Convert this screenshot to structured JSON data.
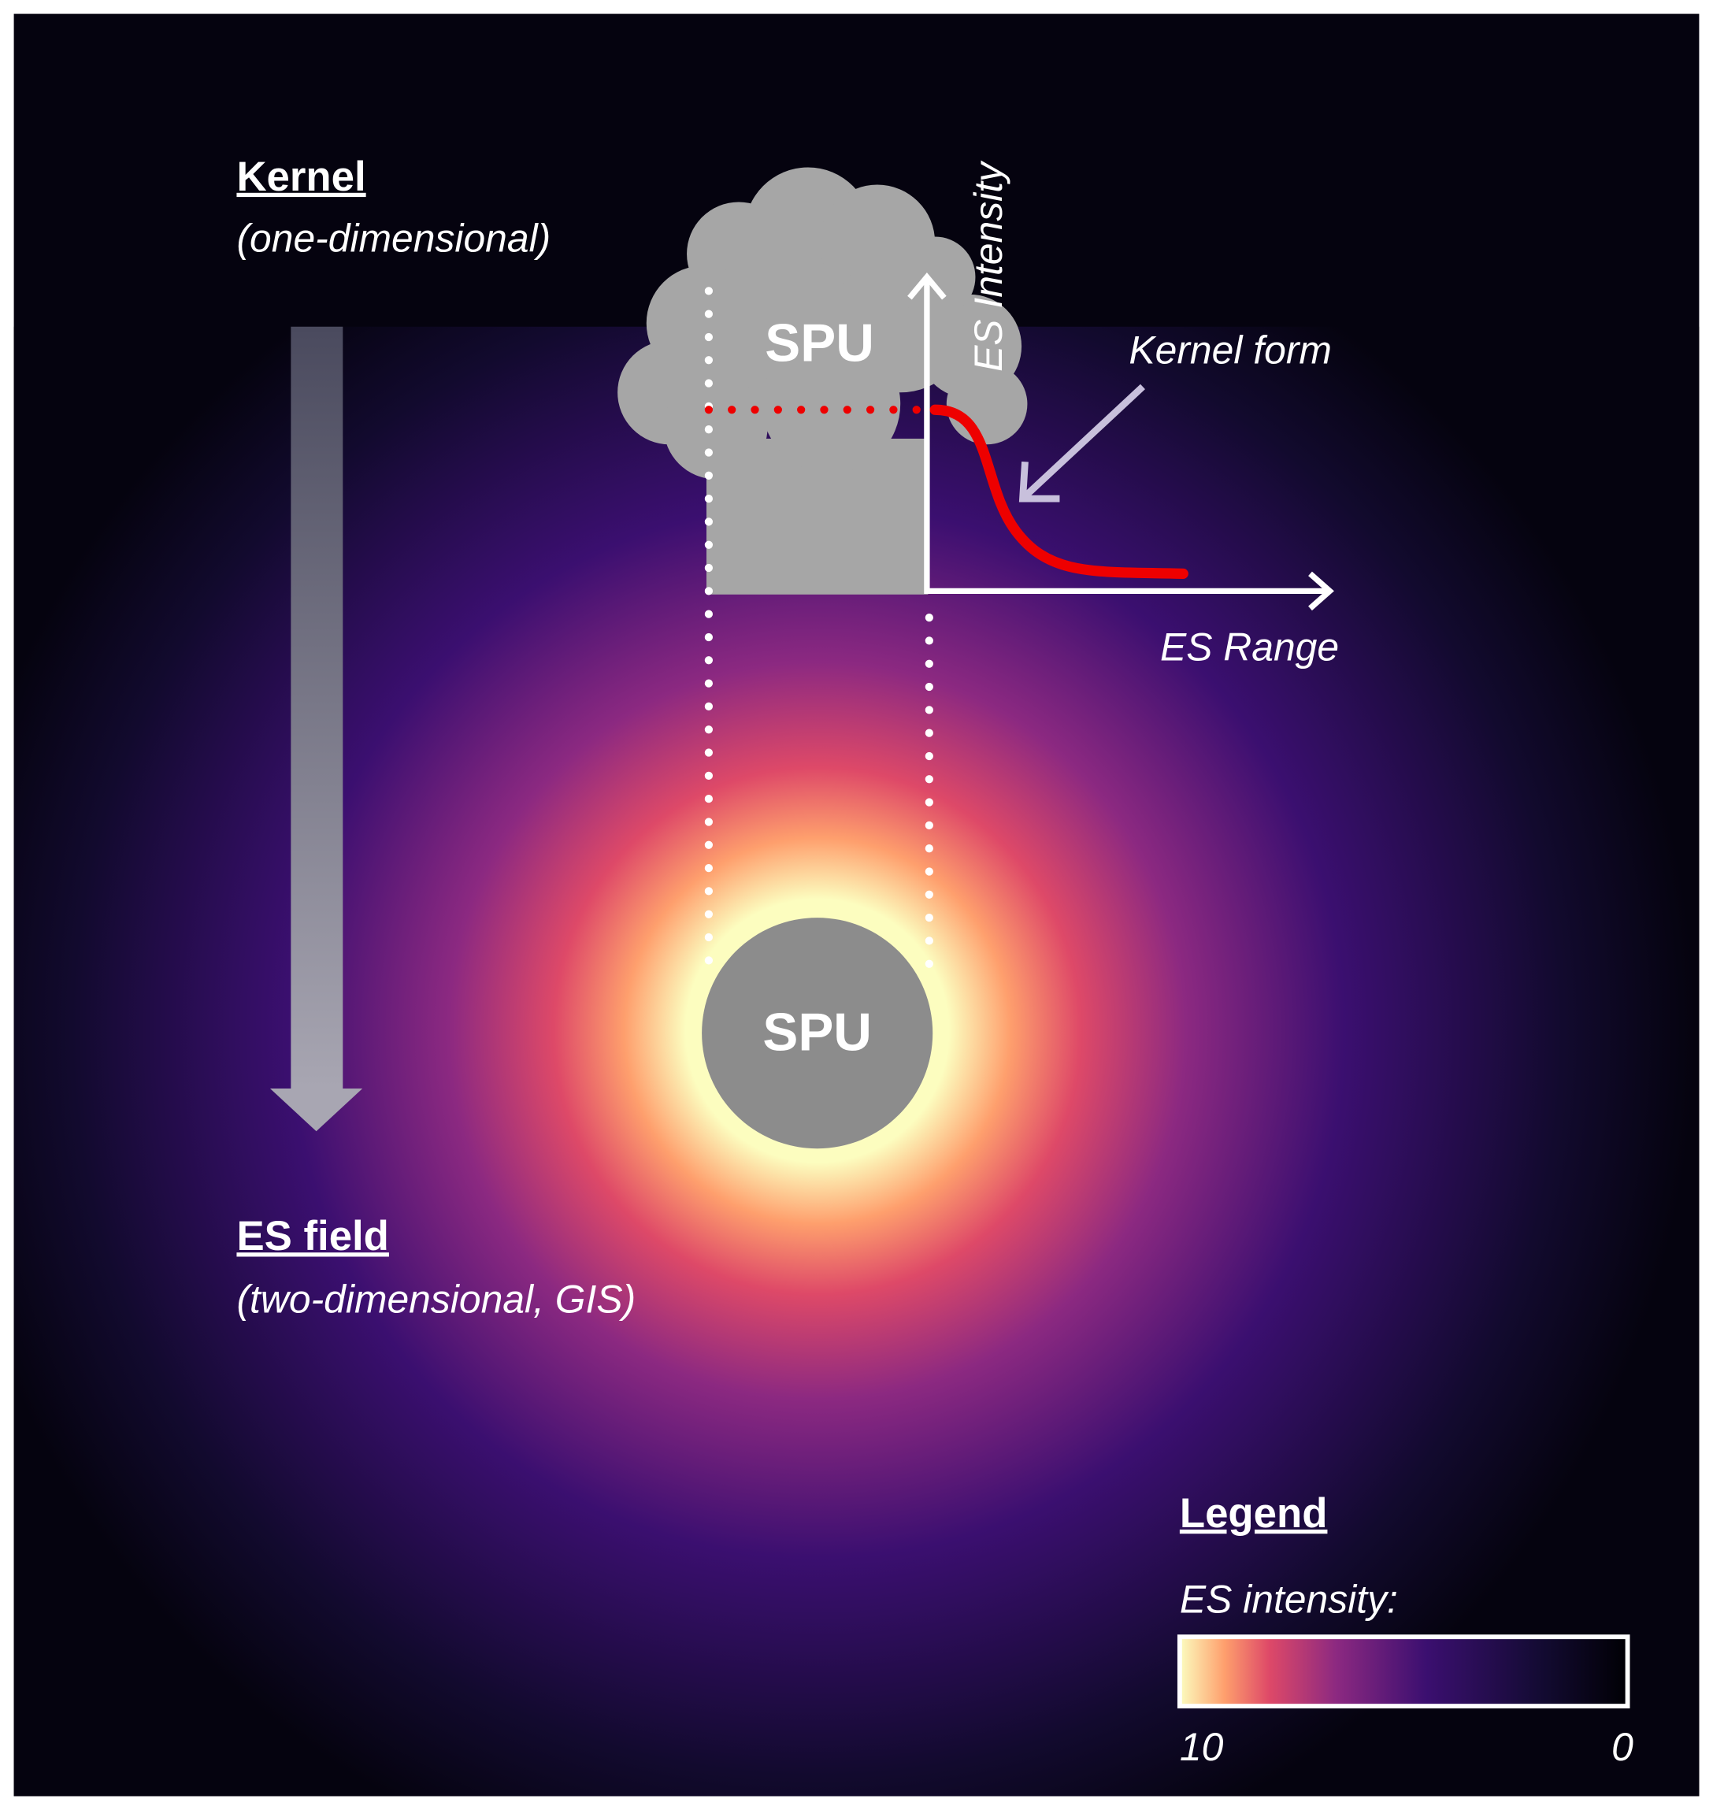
{
  "kernel": {
    "title": "Kernel",
    "subtitle": "(one-dimensional)"
  },
  "spu_tree_label": "SPU",
  "kernel_plot": {
    "y_label": "ES Intensity",
    "x_label": "ES Range",
    "curve_label": "Kernel form"
  },
  "spu_field_label": "SPU",
  "field": {
    "title": "ES field",
    "subtitle": "(two-dimensional, GIS)"
  },
  "legend": {
    "title": "Legend",
    "label": "ES intensity:",
    "max_label": "10",
    "min_label": "0"
  }
}
